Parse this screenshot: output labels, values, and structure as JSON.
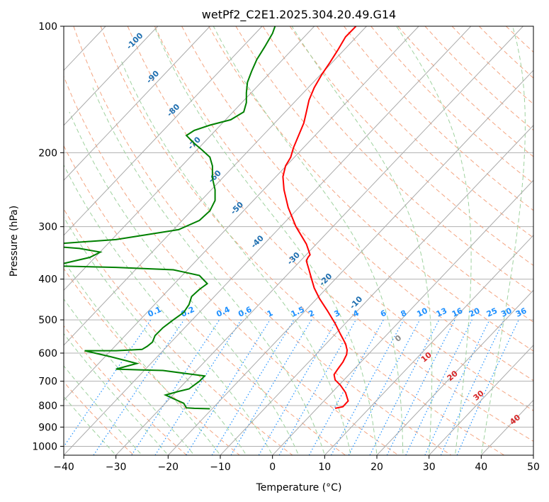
{
  "chart_data": {
    "type": "line",
    "diagram": "skew-T log-P",
    "title": "wetPf2_C2E1.2025.304.20.49.G14",
    "xlabel": "Temperature (°C)",
    "ylabel": "Pressure (hPa)",
    "xlim": [
      -40,
      50
    ],
    "ylim": [
      1050,
      100
    ],
    "y_scale": "log",
    "grid": true,
    "x_ticks": [
      -40,
      -30,
      -20,
      -10,
      0,
      10,
      20,
      30,
      40,
      50
    ],
    "x_tick_labels": [
      "−40",
      "−30",
      "−20",
      "−10",
      "0",
      "10",
      "20",
      "30",
      "40",
      "50"
    ],
    "y_ticks": [
      100,
      200,
      300,
      400,
      500,
      600,
      700,
      800,
      900,
      1000
    ],
    "y_tick_labels": [
      "100",
      "200",
      "300",
      "400",
      "500",
      "600",
      "700",
      "800",
      "900",
      "1000"
    ],
    "isotherm_labels": [
      "-100",
      "-90",
      "-80",
      "-70",
      "-60",
      "-50",
      "-40",
      "-30",
      "-20",
      "-10"
    ],
    "mixing_ratio_labels": [
      "0.1",
      "0.2",
      "0.4",
      "0.6",
      "1",
      "1.5",
      "2",
      "3",
      "4",
      "6",
      "8",
      "10",
      "13",
      "16",
      "20",
      "25",
      "30",
      "36"
    ],
    "moist_adiabat_labels": [
      "0",
      "10",
      "20",
      "30",
      "40"
    ],
    "colors": {
      "temperature": "#ff0000",
      "dewpoint": "#008000",
      "isotherm": "#aaaaaa",
      "dry_adiabat": "#f4a582",
      "moist_adiabat": "#9fd29f",
      "mixing_ratio": "#1e90ff",
      "isotherm_label": "#1f6fb0",
      "moist_label": "#d62728"
    },
    "series": [
      {
        "key": "temperature",
        "x": [
          12,
          13.5,
          14.5,
          14,
          13,
          12,
          11.8,
          12.5,
          13.5,
          14.2,
          14.3,
          14,
          13,
          12,
          10.5,
          9,
          8,
          7.5,
          7,
          6.5,
          6.8,
          7.2,
          6.5,
          4.5,
          3,
          2.2,
          2,
          2.5,
          3.5,
          4,
          5,
          6,
          6.5,
          7,
          8,
          9.5,
          11,
          12.5,
          14,
          16
        ],
        "y": [
          812,
          805,
          780,
          745,
          715,
          695,
          675,
          655,
          630,
          605,
          590,
          570,
          540,
          510,
          475,
          445,
          420,
          400,
          380,
          362,
          355,
          350,
          330,
          300,
          270,
          245,
          228,
          215,
          205,
          195,
          182,
          170,
          160,
          150,
          140,
          130,
          122,
          114,
          106,
          100
        ]
      },
      {
        "key": "dewpoint",
        "x": [
          -12,
          -15,
          -16.5,
          -17,
          -19,
          -20.5,
          -18,
          -16,
          -14,
          -13,
          -17,
          -21,
          -25,
          -30,
          -28,
          -26,
          -31,
          -36,
          -30,
          -25,
          -24,
          -23,
          -22.5,
          -21,
          -19,
          -17,
          -16,
          -15.5,
          -14,
          -12.5,
          -14,
          -19,
          -30,
          -42,
          -35,
          -33,
          -37,
          -45,
          -30,
          -18,
          -14,
          -12,
          -11,
          -11,
          -11.5,
          -11.5,
          -12,
          -13.5,
          -15,
          -16.5,
          -15,
          -12,
          -8,
          -5.5,
          -5,
          -5,
          -4.8,
          -4,
          -3,
          -1.5,
          0,
          0.5
        ],
        "y": [
          814,
          812,
          810,
          790,
          770,
          755,
          740,
          730,
          700,
          680,
          670,
          660,
          658,
          655,
          645,
          635,
          612,
          592,
          592,
          588,
          578,
          565,
          545,
          522,
          500,
          480,
          460,
          440,
          423,
          410,
          392,
          380,
          375,
          372,
          355,
          345,
          338,
          332,
          322,
          305,
          290,
          275,
          260,
          245,
          230,
          215,
          205,
          197,
          190,
          182,
          177,
          172,
          167,
          160,
          152,
          144,
          136,
          128,
          120,
          112,
          104,
          100
        ]
      }
    ]
  }
}
